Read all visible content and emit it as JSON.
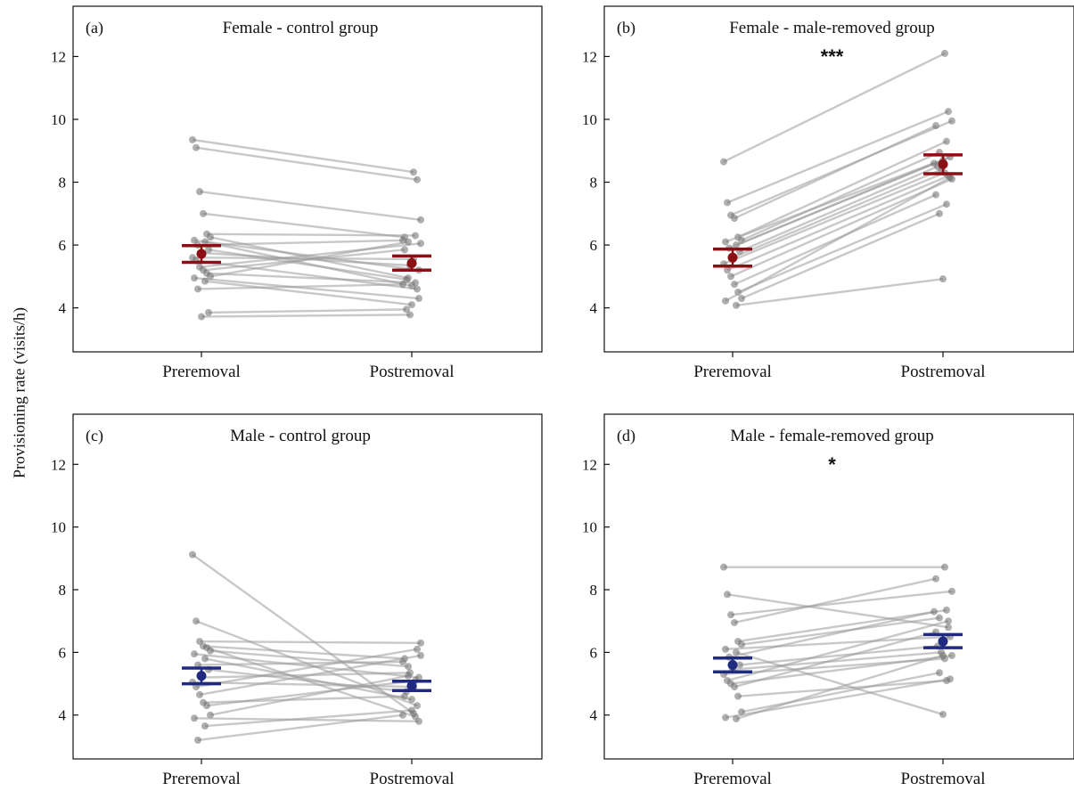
{
  "figure": {
    "ylabel": "Provisioning rate (visits/h)"
  },
  "chart_data": [
    {
      "type": "scatter",
      "panel_letter": "(a)",
      "title": "Female - control group",
      "significance": "",
      "categories": [
        "Preremoval",
        "Postremoval"
      ],
      "yticks": [
        4,
        6,
        8,
        10,
        12
      ],
      "ylim": [
        2.6,
        13.6
      ],
      "grid": false,
      "colors": {
        "mean": "#8b0f14",
        "lines": "#9a9a9a",
        "points": "#6e6e6e"
      },
      "summary": {
        "pre": {
          "mean": 5.72,
          "lower": 5.45,
          "upper": 5.98
        },
        "post": {
          "mean": 5.42,
          "lower": 5.2,
          "upper": 5.65
        }
      },
      "pairs": [
        [
          9.35,
          8.32
        ],
        [
          9.1,
          8.08
        ],
        [
          7.7,
          6.8
        ],
        [
          7.0,
          6.25
        ],
        [
          6.35,
          6.3
        ],
        [
          6.25,
          4.95
        ],
        [
          6.15,
          5.2
        ],
        [
          6.1,
          4.7
        ],
        [
          6.0,
          6.15
        ],
        [
          5.85,
          4.9
        ],
        [
          5.75,
          5.35
        ],
        [
          5.6,
          5.55
        ],
        [
          5.5,
          4.6
        ],
        [
          5.3,
          6.05
        ],
        [
          5.2,
          5.85
        ],
        [
          5.1,
          4.8
        ],
        [
          5.0,
          6.1
        ],
        [
          4.95,
          4.3
        ],
        [
          4.85,
          4.1
        ],
        [
          4.6,
          4.75
        ],
        [
          3.85,
          3.95
        ],
        [
          3.72,
          3.78
        ]
      ]
    },
    {
      "type": "scatter",
      "panel_letter": "(b)",
      "title": "Female - male-removed group",
      "significance": "***",
      "categories": [
        "Preremoval",
        "Postremoval"
      ],
      "yticks": [
        4,
        6,
        8,
        10,
        12
      ],
      "ylim": [
        2.6,
        13.6
      ],
      "grid": false,
      "colors": {
        "mean": "#8b0f14",
        "lines": "#9a9a9a",
        "points": "#6e6e6e"
      },
      "summary": {
        "pre": {
          "mean": 5.6,
          "lower": 5.33,
          "upper": 5.87
        },
        "post": {
          "mean": 8.57,
          "lower": 8.27,
          "upper": 8.87
        }
      },
      "pairs": [
        [
          8.65,
          12.1
        ],
        [
          7.35,
          10.25
        ],
        [
          6.95,
          9.95
        ],
        [
          6.85,
          9.8
        ],
        [
          6.25,
          9.3
        ],
        [
          6.15,
          8.95
        ],
        [
          6.1,
          8.8
        ],
        [
          6.0,
          8.7
        ],
        [
          5.9,
          8.6
        ],
        [
          5.8,
          8.5
        ],
        [
          5.6,
          8.4
        ],
        [
          5.4,
          8.3
        ],
        [
          5.2,
          8.2
        ],
        [
          5.0,
          8.1
        ],
        [
          4.75,
          7.6
        ],
        [
          4.5,
          7.3
        ],
        [
          4.3,
          7.0
        ],
        [
          4.22,
          8.15
        ],
        [
          4.08,
          4.92
        ]
      ]
    },
    {
      "type": "scatter",
      "panel_letter": "(c)",
      "title": "Male - control group",
      "significance": "",
      "categories": [
        "Preremoval",
        "Postremoval"
      ],
      "yticks": [
        4,
        6,
        8,
        10,
        12
      ],
      "ylim": [
        2.6,
        13.6
      ],
      "grid": false,
      "colors": {
        "mean": "#1f2a80",
        "lines": "#9a9a9a",
        "points": "#6e6e6e"
      },
      "summary": {
        "pre": {
          "mean": 5.25,
          "lower": 5.0,
          "upper": 5.5
        },
        "post": {
          "mean": 4.93,
          "lower": 4.78,
          "upper": 5.08
        }
      },
      "pairs": [
        [
          9.12,
          4.05
        ],
        [
          7.0,
          4.3
        ],
        [
          6.35,
          6.3
        ],
        [
          6.2,
          5.8
        ],
        [
          6.15,
          3.95
        ],
        [
          6.05,
          5.55
        ],
        [
          5.95,
          5.2
        ],
        [
          5.8,
          4.5
        ],
        [
          5.6,
          5.7
        ],
        [
          5.45,
          4.75
        ],
        [
          5.2,
          5.35
        ],
        [
          5.05,
          4.9
        ],
        [
          4.9,
          6.1
        ],
        [
          4.65,
          5.9
        ],
        [
          4.4,
          4.6
        ],
        [
          4.3,
          5.1
        ],
        [
          4.0,
          5.25
        ],
        [
          3.9,
          3.8
        ],
        [
          3.65,
          4.15
        ],
        [
          3.2,
          4.0
        ]
      ]
    },
    {
      "type": "scatter",
      "panel_letter": "(d)",
      "title": "Male - female-removed group",
      "significance": "*",
      "categories": [
        "Preremoval",
        "Postremoval"
      ],
      "yticks": [
        4,
        6,
        8,
        10,
        12
      ],
      "ylim": [
        2.6,
        13.6
      ],
      "grid": false,
      "colors": {
        "mean": "#1f2a80",
        "lines": "#9a9a9a",
        "points": "#6e6e6e"
      },
      "summary": {
        "pre": {
          "mean": 5.6,
          "lower": 5.38,
          "upper": 5.82
        },
        "post": {
          "mean": 6.35,
          "lower": 6.15,
          "upper": 6.57
        }
      },
      "pairs": [
        [
          8.72,
          8.72
        ],
        [
          7.85,
          6.8
        ],
        [
          7.2,
          7.95
        ],
        [
          6.95,
          8.35
        ],
        [
          6.35,
          7.35
        ],
        [
          6.25,
          7.1
        ],
        [
          6.1,
          6.5
        ],
        [
          6.0,
          4.02
        ],
        [
          5.85,
          7.3
        ],
        [
          5.6,
          6.2
        ],
        [
          5.45,
          6.0
        ],
        [
          5.3,
          5.8
        ],
        [
          5.1,
          7.0
        ],
        [
          5.0,
          5.9
        ],
        [
          4.9,
          6.65
        ],
        [
          4.6,
          5.1
        ],
        [
          4.1,
          5.35
        ],
        [
          3.92,
          5.15
        ],
        [
          3.88,
          5.9
        ]
      ]
    }
  ]
}
